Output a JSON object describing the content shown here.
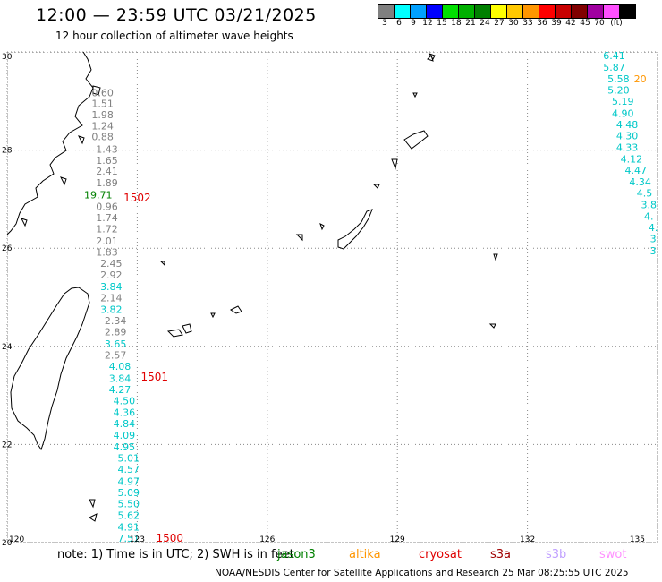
{
  "header": {
    "title": "12:00 — 23:59 UTC 03/21/2025",
    "subtitle": "12 hour collection of altimeter wave heights"
  },
  "legend": {
    "unit": "(ft)",
    "items": [
      {
        "label": "3",
        "color": "#808080"
      },
      {
        "label": "6",
        "color": "#00ffff"
      },
      {
        "label": "9",
        "color": "#00a0ff"
      },
      {
        "label": "12",
        "color": "#0000ff"
      },
      {
        "label": "15",
        "color": "#00e000"
      },
      {
        "label": "18",
        "color": "#00b000"
      },
      {
        "label": "21",
        "color": "#008000"
      },
      {
        "label": "24",
        "color": "#ffff00"
      },
      {
        "label": "27",
        "color": "#ffc800"
      },
      {
        "label": "30",
        "color": "#ff9600"
      },
      {
        "label": "33",
        "color": "#ff0000"
      },
      {
        "label": "36",
        "color": "#c80000"
      },
      {
        "label": "39",
        "color": "#800000"
      },
      {
        "label": "42",
        "color": "#a000a0"
      },
      {
        "label": "45",
        "color": "#ff50ff"
      },
      {
        "label": "70",
        "color": "#000000"
      }
    ]
  },
  "map": {
    "lon_min": 120,
    "lon_max": 135,
    "lat_min": 20,
    "lat_max": 30,
    "lon_ticks": [
      "120",
      "123",
      "126",
      "129",
      "132",
      "135"
    ],
    "lat_ticks": [
      "20",
      "22",
      "24",
      "26",
      "28",
      "30"
    ],
    "tracks": [
      {
        "lon": 122.2,
        "lat": 29.1,
        "value": "0.60",
        "color": "#808080"
      },
      {
        "lon": 122.2,
        "lat": 28.88,
        "value": "1.51",
        "color": "#808080"
      },
      {
        "lon": 122.2,
        "lat": 28.65,
        "value": "1.98",
        "color": "#808080"
      },
      {
        "lon": 122.2,
        "lat": 28.42,
        "value": "1.24",
        "color": "#808080"
      },
      {
        "lon": 122.2,
        "lat": 28.2,
        "value": "0.88",
        "color": "#808080"
      },
      {
        "lon": 122.3,
        "lat": 27.95,
        "value": "1.43",
        "color": "#808080"
      },
      {
        "lon": 122.3,
        "lat": 27.72,
        "value": "1.65",
        "color": "#808080"
      },
      {
        "lon": 122.3,
        "lat": 27.5,
        "value": "2.41",
        "color": "#808080"
      },
      {
        "lon": 122.3,
        "lat": 27.26,
        "value": "1.89",
        "color": "#808080"
      },
      {
        "lon": 122.1,
        "lat": 27.02,
        "value": "19.71",
        "color": "#008000"
      },
      {
        "lon": 122.3,
        "lat": 26.78,
        "value": "0.96",
        "color": "#808080"
      },
      {
        "lon": 122.3,
        "lat": 26.55,
        "value": "1.74",
        "color": "#808080"
      },
      {
        "lon": 122.3,
        "lat": 26.32,
        "value": "1.72",
        "color": "#808080"
      },
      {
        "lon": 122.3,
        "lat": 26.08,
        "value": "2.01",
        "color": "#808080"
      },
      {
        "lon": 122.3,
        "lat": 25.85,
        "value": "1.83",
        "color": "#808080"
      },
      {
        "lon": 122.4,
        "lat": 25.62,
        "value": "2.45",
        "color": "#808080"
      },
      {
        "lon": 122.4,
        "lat": 25.38,
        "value": "2.92",
        "color": "#808080"
      },
      {
        "lon": 122.4,
        "lat": 25.15,
        "value": "3.84",
        "color": "#00c8c8"
      },
      {
        "lon": 122.4,
        "lat": 24.92,
        "value": "2.14",
        "color": "#808080"
      },
      {
        "lon": 122.4,
        "lat": 24.68,
        "value": "3.82",
        "color": "#00c8c8"
      },
      {
        "lon": 122.5,
        "lat": 24.45,
        "value": "2.34",
        "color": "#808080"
      },
      {
        "lon": 122.5,
        "lat": 24.22,
        "value": "2.89",
        "color": "#808080"
      },
      {
        "lon": 122.5,
        "lat": 23.98,
        "value": "3.65",
        "color": "#00c8c8"
      },
      {
        "lon": 122.5,
        "lat": 23.75,
        "value": "2.57",
        "color": "#808080"
      },
      {
        "lon": 122.6,
        "lat": 23.52,
        "value": "4.08",
        "color": "#00c8c8"
      },
      {
        "lon": 122.6,
        "lat": 23.28,
        "value": "3.84",
        "color": "#00c8c8"
      },
      {
        "lon": 122.6,
        "lat": 23.05,
        "value": "4.27",
        "color": "#00c8c8"
      },
      {
        "lon": 122.7,
        "lat": 22.82,
        "value": "4.50",
        "color": "#00c8c8"
      },
      {
        "lon": 122.7,
        "lat": 22.58,
        "value": "4.36",
        "color": "#00c8c8"
      },
      {
        "lon": 122.7,
        "lat": 22.35,
        "value": "4.84",
        "color": "#00c8c8"
      },
      {
        "lon": 122.7,
        "lat": 22.12,
        "value": "4.09",
        "color": "#00c8c8"
      },
      {
        "lon": 122.7,
        "lat": 21.88,
        "value": "4.95",
        "color": "#00c8c8"
      },
      {
        "lon": 122.8,
        "lat": 21.65,
        "value": "5.01",
        "color": "#00c8c8"
      },
      {
        "lon": 122.8,
        "lat": 21.42,
        "value": "4.57",
        "color": "#00c8c8"
      },
      {
        "lon": 122.8,
        "lat": 21.18,
        "value": "4.97",
        "color": "#00c8c8"
      },
      {
        "lon": 122.8,
        "lat": 20.95,
        "value": "5.09",
        "color": "#00c8c8"
      },
      {
        "lon": 122.8,
        "lat": 20.72,
        "value": "5.50",
        "color": "#00c8c8"
      },
      {
        "lon": 122.8,
        "lat": 20.48,
        "value": "5.62",
        "color": "#00c8c8"
      },
      {
        "lon": 122.8,
        "lat": 20.25,
        "value": "4.91",
        "color": "#00c8c8"
      },
      {
        "lon": 122.8,
        "lat": 20.02,
        "value": "7.51",
        "color": "#00c8c8"
      },
      {
        "lon": 134.0,
        "lat": 29.85,
        "value": "6.41",
        "color": "#00c8c8"
      },
      {
        "lon": 134.0,
        "lat": 29.62,
        "value": "5.87",
        "color": "#00c8c8"
      },
      {
        "lon": 134.1,
        "lat": 29.38,
        "value": "5.58",
        "color": "#00c8c8"
      },
      {
        "lon": 134.6,
        "lat": 29.38,
        "value": "20",
        "color": "#ff9600"
      },
      {
        "lon": 134.1,
        "lat": 29.15,
        "value": "5.20",
        "color": "#00c8c8"
      },
      {
        "lon": 134.2,
        "lat": 28.92,
        "value": "5.19",
        "color": "#00c8c8"
      },
      {
        "lon": 134.2,
        "lat": 28.68,
        "value": "4.90",
        "color": "#00c8c8"
      },
      {
        "lon": 134.3,
        "lat": 28.45,
        "value": "4.48",
        "color": "#00c8c8"
      },
      {
        "lon": 134.3,
        "lat": 28.22,
        "value": "4.30",
        "color": "#00c8c8"
      },
      {
        "lon": 134.3,
        "lat": 27.98,
        "value": "4.33",
        "color": "#00c8c8"
      },
      {
        "lon": 134.4,
        "lat": 27.75,
        "value": "4.12",
        "color": "#00c8c8"
      },
      {
        "lon": 134.5,
        "lat": 27.52,
        "value": "4.47",
        "color": "#00c8c8"
      },
      {
        "lon": 134.6,
        "lat": 27.28,
        "value": "4.34",
        "color": "#00c8c8"
      },
      {
        "lon": 134.7,
        "lat": 27.05,
        "value": "4.5",
        "color": "#00c8c8"
      },
      {
        "lon": 134.8,
        "lat": 26.82,
        "value": "3.8",
        "color": "#00c8c8"
      },
      {
        "lon": 134.8,
        "lat": 26.58,
        "value": "4.",
        "color": "#00c8c8"
      },
      {
        "lon": 134.9,
        "lat": 26.35,
        "value": "4.",
        "color": "#00c8c8"
      },
      {
        "lon": 134.9,
        "lat": 26.12,
        "value": "3",
        "color": "#00c8c8"
      },
      {
        "lon": 134.9,
        "lat": 25.88,
        "value": "3",
        "color": "#00c8c8"
      }
    ],
    "ids": [
      {
        "lon": 123.0,
        "lat": 26.95,
        "text": "1502",
        "color": "#e00000"
      },
      {
        "lon": 123.4,
        "lat": 23.3,
        "text": "1501",
        "color": "#e00000"
      },
      {
        "lon": 123.75,
        "lat": 20.02,
        "text": "1500",
        "color": "#e00000"
      }
    ]
  },
  "footer": {
    "note": "note:  1) Time is in UTC; 2) SWH is in feet",
    "satellites": [
      {
        "name": "jason3",
        "color": "#008000"
      },
      {
        "name": "altika",
        "color": "#ff9600"
      },
      {
        "name": "cryosat",
        "color": "#e00000"
      },
      {
        "name": "s3a",
        "color": "#a00000"
      },
      {
        "name": "s3b",
        "color": "#c0a0ff"
      },
      {
        "name": "swot",
        "color": "#ff90ff"
      }
    ],
    "credit": "NOAA/NESDIS Center for Satellite Applications and Research    25 Mar 08:25:55 UTC 2025"
  }
}
